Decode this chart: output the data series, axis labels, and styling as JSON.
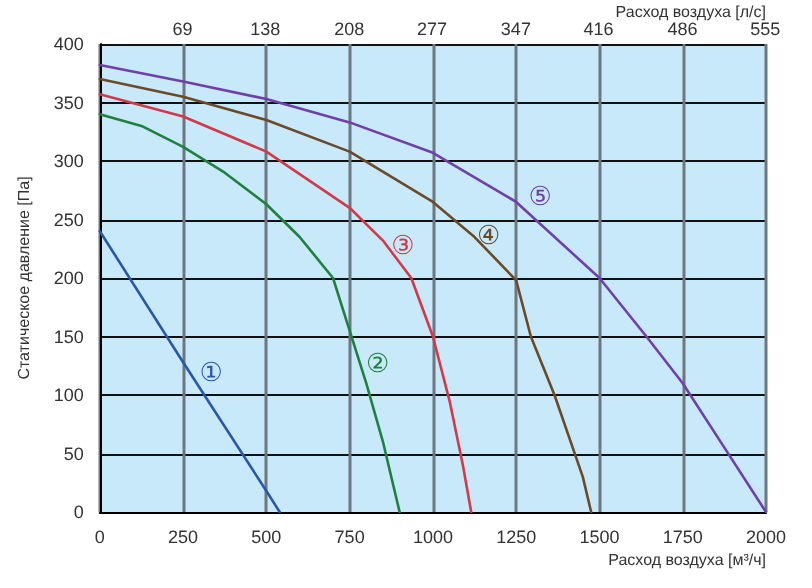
{
  "chart_data": {
    "type": "line",
    "xlabel": "Расход воздуха [м³/ч]",
    "x2label": "Расход воздуха [л/с]",
    "ylabel": "Статическое давление [Па]",
    "xlim": [
      0,
      2000
    ],
    "xticks": [
      0,
      250,
      500,
      750,
      1000,
      1250,
      1500,
      1750,
      2000
    ],
    "x2lim": [
      0,
      555.6
    ],
    "x2ticks": [
      69,
      138,
      208,
      277,
      347,
      416,
      486,
      555
    ],
    "ylim": [
      0,
      400
    ],
    "yticks": [
      0,
      50,
      100,
      150,
      200,
      250,
      300,
      350,
      400
    ],
    "grid": true,
    "marker": "none",
    "line_style": "solid",
    "series": [
      {
        "color": "#2a58a8",
        "x": [
          0,
          250,
          500,
          540
        ],
        "values": [
          240,
          128,
          18,
          0
        ]
      },
      {
        "color": "#1f8040",
        "x": [
          0,
          125,
          250,
          375,
          500,
          600,
          700,
          750,
          800,
          850,
          900
        ],
        "values": [
          340,
          330,
          312,
          290,
          263,
          235,
          200,
          155,
          110,
          60,
          0
        ]
      },
      {
        "color": "#d23a4a",
        "x": [
          0,
          250,
          500,
          750,
          850,
          935,
          1000,
          1050,
          1090,
          1115
        ],
        "values": [
          357,
          338,
          308,
          260,
          232,
          200,
          150,
          95,
          40,
          0
        ]
      },
      {
        "color": "#6b4a2a",
        "x": [
          0,
          250,
          500,
          750,
          1000,
          1125,
          1250,
          1294,
          1365,
          1450,
          1475
        ],
        "values": [
          370,
          355,
          335,
          308,
          265,
          235,
          198,
          150,
          100,
          30,
          0
        ]
      },
      {
        "color": "#7040a8",
        "x": [
          0,
          250,
          500,
          750,
          1000,
          1250,
          1500,
          1641,
          1750,
          1875,
          2000
        ],
        "values": [
          382,
          368,
          353,
          333,
          307,
          265,
          200,
          150,
          110,
          55,
          0
        ]
      }
    ],
    "annotations": [
      "①",
      "②",
      "③",
      "④",
      "⑤"
    ]
  }
}
